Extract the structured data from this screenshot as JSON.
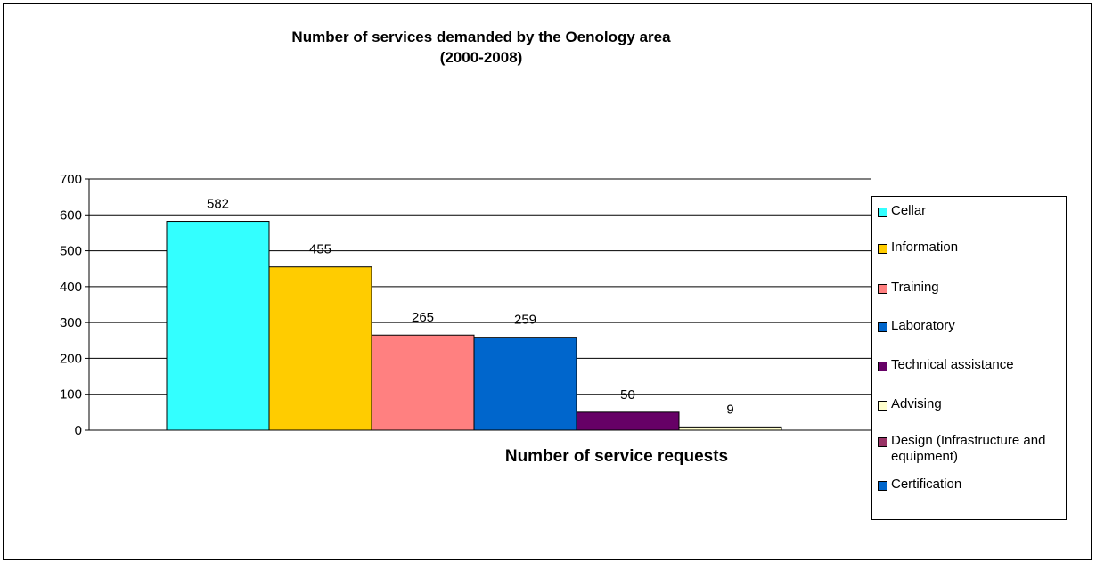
{
  "chart_data": {
    "type": "bar",
    "title": [
      "Number of services demanded by the Oenology area",
      "(2000-2008)"
    ],
    "xlabel": "Number of service requests",
    "ylabel": "",
    "ylim": [
      0,
      700
    ],
    "yticks": [
      "0",
      "100",
      "200",
      "300",
      "400",
      "500",
      "600",
      "700"
    ],
    "grid": "horizontal",
    "legend_position": "right",
    "series": [
      {
        "name": "Cellar",
        "value": 582,
        "color": "#33FFFF"
      },
      {
        "name": "Information",
        "value": 455,
        "color": "#FFCC00"
      },
      {
        "name": "Training",
        "value": 265,
        "color": "#FF8080"
      },
      {
        "name": "Laboratory",
        "value": 259,
        "color": "#0066CC"
      },
      {
        "name": "Technical assistance",
        "value": 50,
        "color": "#660066"
      },
      {
        "name": "Advising",
        "value": 9,
        "color": "#FFFFCC"
      },
      {
        "name": "Design (Infrastructure and equipment)",
        "value": null,
        "color": "#993366"
      },
      {
        "name": "Certification",
        "value": null,
        "color": "#0066CC"
      }
    ]
  }
}
